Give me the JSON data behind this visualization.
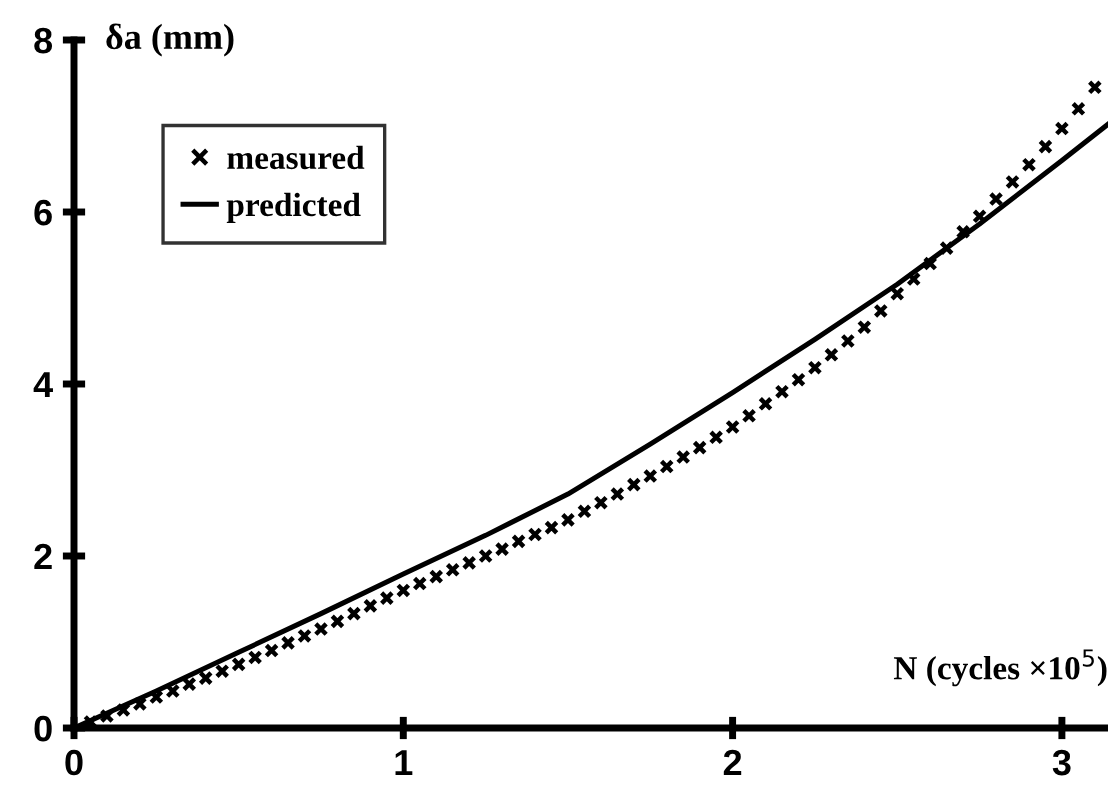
{
  "chart_data": {
    "type": "scatter",
    "xlabel": "N (cycles ×10$^{5}$)",
    "ylabel": "δa (mm)",
    "xlim": [
      0,
      3.14
    ],
    "ylim": [
      0,
      8
    ],
    "xticks": [
      0,
      1,
      2,
      3
    ],
    "yticks": [
      0,
      2,
      4,
      6,
      8
    ],
    "grid": false,
    "legend": "top left",
    "series": [
      {
        "name": "measured",
        "marker": "cross",
        "color": "#000000",
        "x": [
          0.05,
          0.1,
          0.15,
          0.2,
          0.25,
          0.3,
          0.35,
          0.4,
          0.45,
          0.5,
          0.55,
          0.6,
          0.65,
          0.7,
          0.75,
          0.8,
          0.85,
          0.9,
          0.95,
          1,
          1.05,
          1.1,
          1.15,
          1.2,
          1.25,
          1.3,
          1.35,
          1.4,
          1.45,
          1.5,
          1.55,
          1.6,
          1.65,
          1.7,
          1.75,
          1.8,
          1.85,
          1.9,
          1.95,
          2,
          2.05,
          2.1,
          2.15,
          2.2,
          2.25,
          2.3,
          2.35,
          2.4,
          2.45,
          2.5,
          2.55,
          2.6,
          2.65,
          2.7,
          2.75,
          2.8,
          2.85,
          2.9,
          2.95,
          3,
          3.05,
          3.1
        ],
        "values": [
          0.07,
          0.14,
          0.21,
          0.28,
          0.36,
          0.43,
          0.51,
          0.58,
          0.66,
          0.74,
          0.82,
          0.9,
          0.99,
          1.07,
          1.15,
          1.24,
          1.33,
          1.42,
          1.51,
          1.6,
          1.68,
          1.76,
          1.84,
          1.92,
          2.0,
          2.08,
          2.17,
          2.25,
          2.33,
          2.42,
          2.52,
          2.62,
          2.72,
          2.83,
          2.93,
          3.04,
          3.15,
          3.26,
          3.38,
          3.5,
          3.63,
          3.77,
          3.91,
          4.05,
          4.19,
          4.34,
          4.5,
          4.66,
          4.85,
          5.05,
          5.22,
          5.4,
          5.58,
          5.77,
          5.95,
          6.15,
          6.35,
          6.55,
          6.76,
          6.97,
          7.2,
          7.45
        ]
      },
      {
        "name": "predicted",
        "type": "line",
        "line_style": "solid",
        "color": "#000000",
        "x": [
          0,
          0.25,
          0.5,
          0.75,
          1,
          1.25,
          1.5,
          1.75,
          2,
          2.25,
          2.5,
          2.75,
          3,
          3.14
        ],
        "values": [
          0,
          0.43,
          0.88,
          1.33,
          1.79,
          2.24,
          2.72,
          3.3,
          3.9,
          4.52,
          5.16,
          5.86,
          6.6,
          7.02
        ]
      }
    ]
  }
}
